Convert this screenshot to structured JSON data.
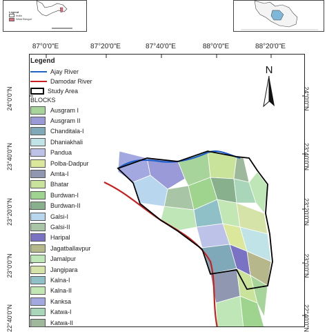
{
  "inset_left": {
    "legend_title": "Legend",
    "legend_items": [
      {
        "label": "India",
        "color": "#ffffff"
      },
      {
        "label": "West Bengal",
        "color": "#e06b7a"
      }
    ]
  },
  "lon_labels": [
    "87°0'0\"E",
    "87°20'0\"E",
    "87°40'0\"E",
    "88°0'0\"E",
    "88°20'0\"E"
  ],
  "lat_labels": [
    "24°0'0\"N",
    "23°40'0\"N",
    "23°20'0\"N",
    "23°0'0\"N",
    "22°40'0\"N"
  ],
  "legend": {
    "title": "Legend",
    "ajay_river": {
      "label": "Ajay River",
      "color": "#1f5fc7"
    },
    "damodar_river": {
      "label": "Damodar River",
      "color": "#c8201e"
    },
    "study_area": {
      "label": "Study Area",
      "color": "#000000"
    },
    "blocks_title": "BLOCKS",
    "blocks": [
      {
        "label": "Ausgram I",
        "color": "#a7d49b"
      },
      {
        "label": "Ausgram II",
        "color": "#9a9ad8"
      },
      {
        "label": "Chanditala-I",
        "color": "#7fa8b8"
      },
      {
        "label": "Dhaniakhali",
        "color": "#bfe3e6"
      },
      {
        "label": "Pandua",
        "color": "#bcc2e8"
      },
      {
        "label": "Polba-Dadpur",
        "color": "#dbe79a"
      },
      {
        "label": "Amta-I",
        "color": "#8f98b0"
      },
      {
        "label": "Bhatar",
        "color": "#c9e39a"
      },
      {
        "label": "Burdwan-I",
        "color": "#9fd48f"
      },
      {
        "label": "Burdwan-II",
        "color": "#88b08c"
      },
      {
        "label": "Galsi-I",
        "color": "#b8d6ee"
      },
      {
        "label": "Galsi-II",
        "color": "#a8c6a6"
      },
      {
        "label": "Haripal",
        "color": "#7a72c2"
      },
      {
        "label": "Jagatballavpur",
        "color": "#b7b78c"
      },
      {
        "label": "Jamalpur",
        "color": "#bfe6b6"
      },
      {
        "label": "Jangipara",
        "color": "#d5e3a9"
      },
      {
        "label": "Kalna-I",
        "color": "#8fc0c8"
      },
      {
        "label": "Kalna-II",
        "color": "#c3e6b5"
      },
      {
        "label": "Kanksa",
        "color": "#a3a8e0"
      },
      {
        "label": "Katwa-I",
        "color": "#a9d6b8"
      },
      {
        "label": "Katwa-II",
        "color": "#9db89a"
      }
    ]
  },
  "north_arrow_label": "N"
}
